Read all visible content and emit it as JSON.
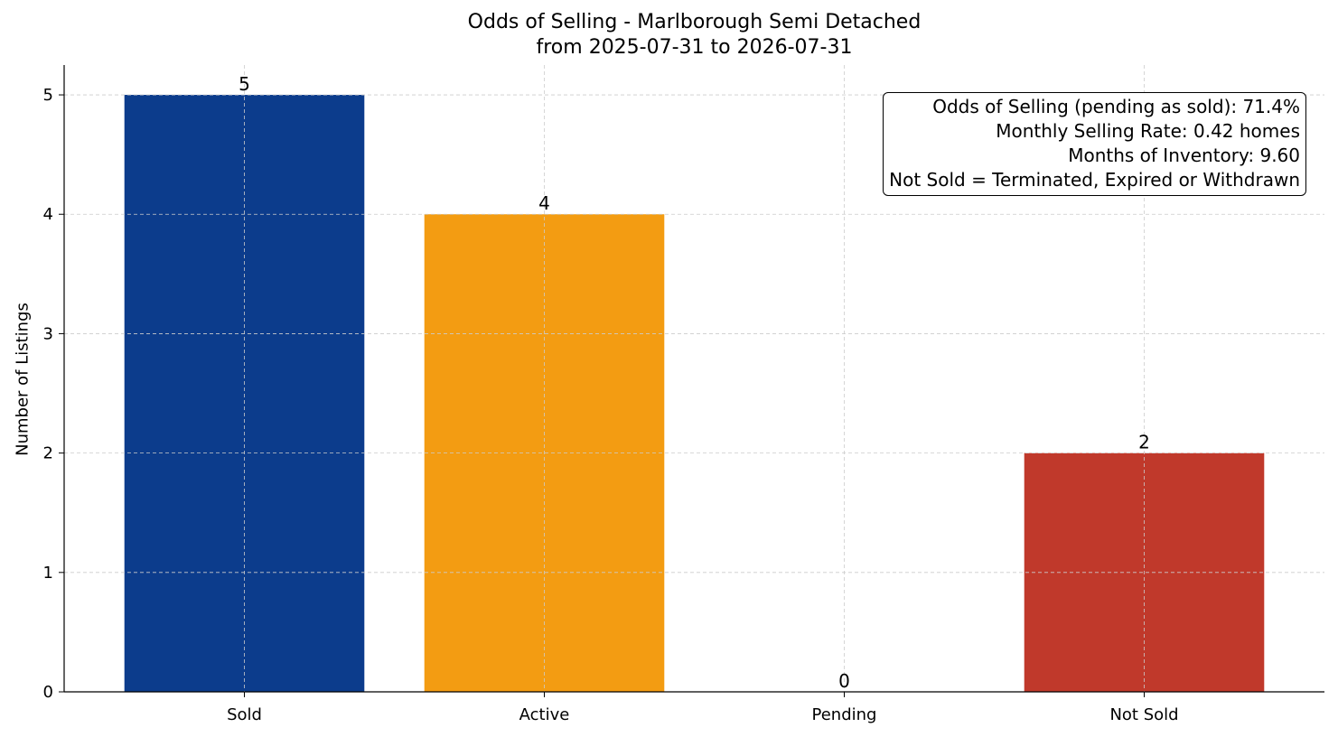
{
  "chart_data": {
    "type": "bar",
    "title": "Odds of Selling - Marlborough Semi Detached",
    "subtitle": "from 2025-07-31 to 2026-07-31",
    "xlabel": "",
    "ylabel": "Number of Listings",
    "categories": [
      "Sold",
      "Active",
      "Pending",
      "Not Sold"
    ],
    "values": [
      5,
      4,
      0,
      2
    ],
    "bar_colors": [
      "#0c3c8c",
      "#f39c12",
      "#999999",
      "#c0392b"
    ],
    "data_labels": [
      "5",
      "4",
      "0",
      "2"
    ],
    "ylim": [
      0,
      5.25
    ],
    "yticks": [
      0,
      1,
      2,
      3,
      4,
      5
    ],
    "ytick_labels": [
      "0",
      "1",
      "2",
      "3",
      "4",
      "5"
    ],
    "grid": true,
    "annotation_lines": [
      "Odds of Selling (pending as sold): 71.4%",
      "Monthly Selling Rate: 0.42 homes",
      "Months of Inventory: 9.60",
      "Not Sold = Terminated, Expired or Withdrawn"
    ],
    "annotation_placement": "top-right"
  }
}
